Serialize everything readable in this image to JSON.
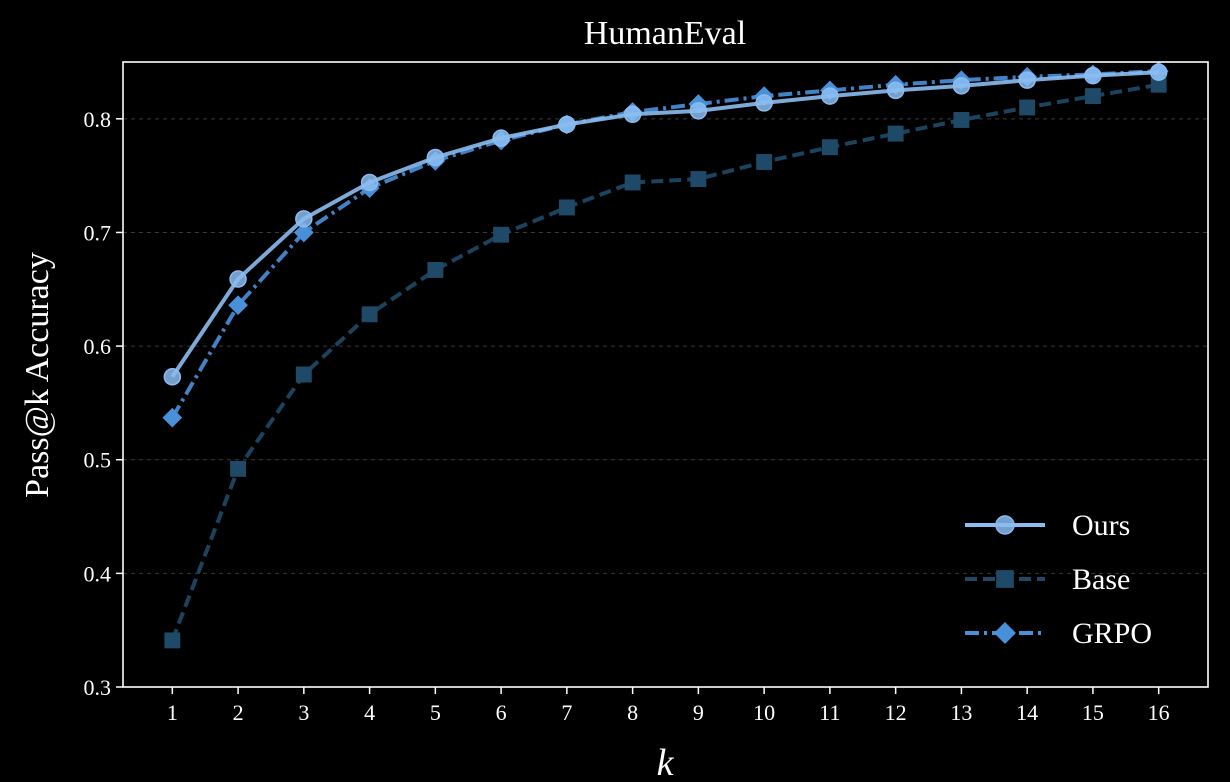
{
  "chart_data": {
    "type": "line",
    "title": "HumanEval",
    "xlabel": "k",
    "ylabel": "Pass@k Accuracy",
    "x": [
      1,
      2,
      3,
      4,
      5,
      6,
      7,
      8,
      9,
      10,
      11,
      12,
      13,
      14,
      15,
      16
    ],
    "xticks": [
      "1",
      "2",
      "3",
      "4",
      "5",
      "6",
      "7",
      "8",
      "9",
      "10",
      "11",
      "12",
      "13",
      "14",
      "15",
      "16"
    ],
    "xlim": [
      0.25,
      16.75
    ],
    "ylim": [
      0.3,
      0.85
    ],
    "yticks": [
      0.3,
      0.4,
      0.5,
      0.6,
      0.7,
      0.8
    ],
    "ytick_labels": [
      "0.3",
      "0.4",
      "0.5",
      "0.6",
      "0.7",
      "0.8"
    ],
    "grid": "horizontal dashed",
    "legend_position": "lower-right",
    "series": [
      {
        "name": "Ours",
        "color": "#8bbcf0",
        "line_style": "solid",
        "marker": "circle",
        "values": [
          0.573,
          0.659,
          0.712,
          0.744,
          0.766,
          0.783,
          0.795,
          0.804,
          0.807,
          0.814,
          0.82,
          0.825,
          0.829,
          0.834,
          0.838,
          0.841
        ]
      },
      {
        "name": "Base",
        "color": "#1e4a68",
        "line_style": "dashed",
        "marker": "square",
        "values": [
          0.341,
          0.492,
          0.575,
          0.628,
          0.667,
          0.698,
          0.722,
          0.744,
          0.747,
          0.762,
          0.775,
          0.787,
          0.799,
          0.81,
          0.82,
          0.83
        ]
      },
      {
        "name": "GRPO",
        "color": "#4a90d9",
        "line_style": "dashdot",
        "marker": "diamond",
        "values": [
          0.537,
          0.636,
          0.7,
          0.739,
          0.763,
          0.781,
          0.795,
          0.806,
          0.813,
          0.82,
          0.825,
          0.83,
          0.834,
          0.837,
          0.839,
          0.842
        ]
      }
    ]
  }
}
